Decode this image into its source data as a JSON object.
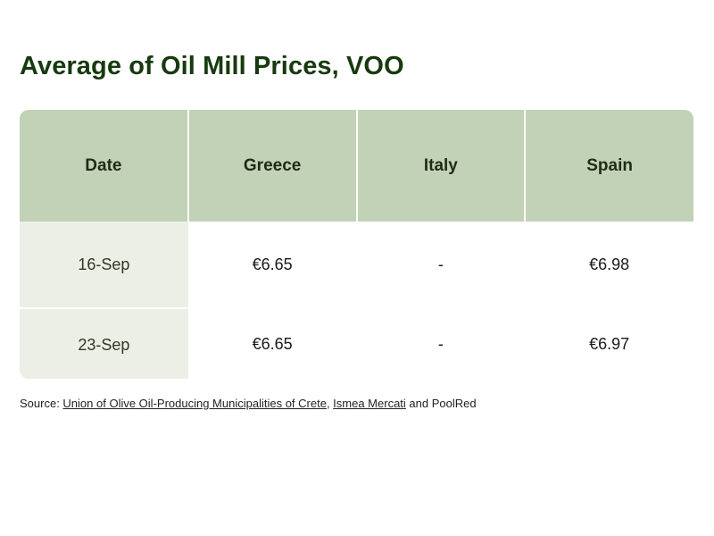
{
  "chart_data": {
    "type": "table",
    "title": "Average of Oil Mill Prices, VOO",
    "columns": [
      "Date",
      "Greece",
      "Italy",
      "Spain"
    ],
    "rows": [
      [
        "16-Sep",
        "€6.65",
        "-",
        "€6.98"
      ],
      [
        "23-Sep",
        "€6.65",
        "-",
        "€6.97"
      ]
    ]
  },
  "source": {
    "prefix": "Source: ",
    "link1": "Union of Olive Oil-Producing Municipalities of Crete",
    "sep": ", ",
    "link2": "Ismea Mercati",
    "suffix": " and PoolRed"
  },
  "colors": {
    "title": "#173a0e",
    "header_bg": "#c2d2b6",
    "date_bg": "#ecefe6"
  }
}
